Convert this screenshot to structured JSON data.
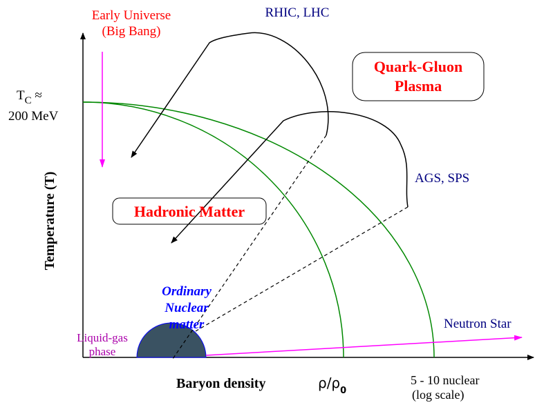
{
  "labels": {
    "early_universe": "Early Universe",
    "big_bang": "(Big Bang)",
    "rhic_lhc": "RHIC, LHC",
    "qgp_line1": "Quark-Gluon",
    "qgp_line2": "Plasma",
    "tc_symbol": "T",
    "tc_subscript": "C",
    "tc_approx": " ≈",
    "tc_value": "200 MeV",
    "ags_sps": "AGS, SPS",
    "hadronic_matter": "Hadronic Matter",
    "y_axis": "Temperature (T)",
    "ordinary_line1": "Ordinary",
    "ordinary_line2": "Nuclear",
    "ordinary_line3": "matter",
    "liquid_gas_line1": "Liquid-gas",
    "liquid_gas_line2": "phase",
    "neutron_star": "Neutron Star",
    "x_axis": "Baryon density",
    "rho_ratio": "ρ/ρ",
    "rho_subscript": "0",
    "scale_line1": "5 - 10  nuclear",
    "scale_line2": "(log scale)"
  }
}
